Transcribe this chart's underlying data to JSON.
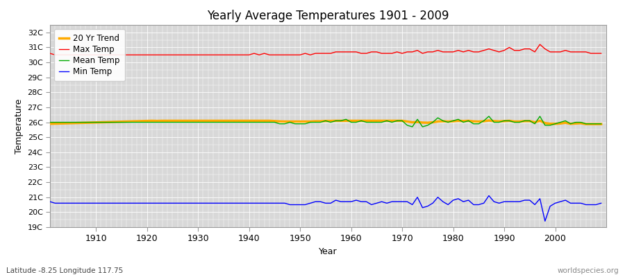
{
  "title": "Yearly Average Temperatures 1901 - 2009",
  "xlabel": "Year",
  "ylabel": "Temperature",
  "bottom_left_label": "Latitude -8.25 Longitude 117.75",
  "bottom_right_label": "worldspecies.org",
  "ylim": [
    19,
    32.5
  ],
  "yticks": [
    19,
    20,
    21,
    22,
    23,
    24,
    25,
    26,
    27,
    28,
    29,
    30,
    31,
    32
  ],
  "ytick_labels": [
    "19C",
    "20C",
    "21C",
    "22C",
    "23C",
    "24C",
    "25C",
    "26C",
    "27C",
    "28C",
    "29C",
    "30C",
    "31C",
    "32C"
  ],
  "xlim": [
    1901,
    2010
  ],
  "xticks": [
    1910,
    1920,
    1930,
    1940,
    1950,
    1960,
    1970,
    1980,
    1990,
    2000
  ],
  "fig_bg_color": "#ffffff",
  "plot_bg_color": "#d8d8d8",
  "grid_color": "#ffffff",
  "legend": {
    "max_temp": {
      "label": "Max Temp",
      "color": "#ff0000"
    },
    "mean_temp": {
      "label": "Mean Temp",
      "color": "#00aa00"
    },
    "min_temp": {
      "label": "Min Temp",
      "color": "#0000ff"
    },
    "trend": {
      "label": "20 Yr Trend",
      "color": "#ffaa00"
    }
  },
  "years": [
    1901,
    1902,
    1903,
    1904,
    1905,
    1906,
    1907,
    1908,
    1909,
    1910,
    1911,
    1912,
    1913,
    1914,
    1915,
    1916,
    1917,
    1918,
    1919,
    1920,
    1921,
    1922,
    1923,
    1924,
    1925,
    1926,
    1927,
    1928,
    1929,
    1930,
    1931,
    1932,
    1933,
    1934,
    1935,
    1936,
    1937,
    1938,
    1939,
    1940,
    1941,
    1942,
    1943,
    1944,
    1945,
    1946,
    1947,
    1948,
    1949,
    1950,
    1951,
    1952,
    1953,
    1954,
    1955,
    1956,
    1957,
    1958,
    1959,
    1960,
    1961,
    1962,
    1963,
    1964,
    1965,
    1966,
    1967,
    1968,
    1969,
    1970,
    1971,
    1972,
    1973,
    1974,
    1975,
    1976,
    1977,
    1978,
    1979,
    1980,
    1981,
    1982,
    1983,
    1984,
    1985,
    1986,
    1987,
    1988,
    1989,
    1990,
    1991,
    1992,
    1993,
    1994,
    1995,
    1996,
    1997,
    1998,
    1999,
    2000,
    2001,
    2002,
    2003,
    2004,
    2005,
    2006,
    2007,
    2008,
    2009
  ],
  "max_temp": [
    30.6,
    30.5,
    30.5,
    30.5,
    30.5,
    30.5,
    30.5,
    30.5,
    30.5,
    30.5,
    30.5,
    30.5,
    30.5,
    30.5,
    30.5,
    30.5,
    30.5,
    30.5,
    30.5,
    30.5,
    30.5,
    30.5,
    30.5,
    30.5,
    30.5,
    30.5,
    30.5,
    30.5,
    30.5,
    30.5,
    30.5,
    30.5,
    30.5,
    30.5,
    30.5,
    30.5,
    30.5,
    30.5,
    30.5,
    30.5,
    30.6,
    30.5,
    30.6,
    30.5,
    30.5,
    30.5,
    30.5,
    30.5,
    30.5,
    30.5,
    30.6,
    30.5,
    30.6,
    30.6,
    30.6,
    30.6,
    30.7,
    30.7,
    30.7,
    30.7,
    30.7,
    30.6,
    30.6,
    30.7,
    30.7,
    30.6,
    30.6,
    30.6,
    30.7,
    30.6,
    30.7,
    30.7,
    30.8,
    30.6,
    30.7,
    30.7,
    30.8,
    30.7,
    30.7,
    30.7,
    30.8,
    30.7,
    30.8,
    30.7,
    30.7,
    30.8,
    30.9,
    30.8,
    30.7,
    30.8,
    31.0,
    30.8,
    30.8,
    30.9,
    30.9,
    30.7,
    31.2,
    30.9,
    30.7,
    30.7,
    30.7,
    30.8,
    30.7,
    30.7,
    30.7,
    30.7,
    30.6,
    30.6,
    30.6
  ],
  "mean_temp": [
    26.0,
    26.0,
    26.0,
    26.0,
    26.0,
    26.0,
    26.0,
    26.0,
    26.0,
    26.0,
    26.0,
    26.0,
    26.0,
    26.0,
    26.0,
    26.0,
    26.0,
    26.0,
    26.0,
    26.0,
    26.0,
    26.0,
    26.0,
    26.0,
    26.0,
    26.0,
    26.0,
    26.0,
    26.0,
    26.0,
    26.0,
    26.0,
    26.0,
    26.0,
    26.0,
    26.0,
    26.0,
    26.0,
    26.0,
    26.0,
    26.0,
    26.0,
    26.0,
    26.0,
    26.0,
    25.9,
    25.9,
    26.0,
    25.9,
    25.9,
    25.9,
    26.0,
    26.0,
    26.0,
    26.1,
    26.0,
    26.1,
    26.1,
    26.2,
    26.0,
    26.0,
    26.1,
    26.0,
    26.0,
    26.0,
    26.0,
    26.1,
    26.0,
    26.1,
    26.1,
    25.8,
    25.7,
    26.2,
    25.7,
    25.8,
    26.0,
    26.3,
    26.1,
    26.0,
    26.1,
    26.2,
    26.0,
    26.1,
    25.9,
    25.9,
    26.1,
    26.4,
    26.0,
    26.0,
    26.1,
    26.1,
    26.0,
    26.0,
    26.1,
    26.1,
    25.9,
    26.4,
    25.8,
    25.8,
    25.9,
    26.0,
    26.1,
    25.9,
    26.0,
    26.0,
    25.9,
    25.9,
    25.9,
    25.9
  ],
  "min_temp": [
    20.7,
    20.6,
    20.6,
    20.6,
    20.6,
    20.6,
    20.6,
    20.6,
    20.6,
    20.6,
    20.6,
    20.6,
    20.6,
    20.6,
    20.6,
    20.6,
    20.6,
    20.6,
    20.6,
    20.6,
    20.6,
    20.6,
    20.6,
    20.6,
    20.6,
    20.6,
    20.6,
    20.6,
    20.6,
    20.6,
    20.6,
    20.6,
    20.6,
    20.6,
    20.6,
    20.6,
    20.6,
    20.6,
    20.6,
    20.6,
    20.6,
    20.6,
    20.6,
    20.6,
    20.6,
    20.6,
    20.6,
    20.5,
    20.5,
    20.5,
    20.5,
    20.6,
    20.7,
    20.7,
    20.6,
    20.6,
    20.8,
    20.7,
    20.7,
    20.7,
    20.8,
    20.7,
    20.7,
    20.5,
    20.6,
    20.7,
    20.6,
    20.7,
    20.7,
    20.7,
    20.7,
    20.5,
    21.0,
    20.3,
    20.4,
    20.6,
    21.0,
    20.7,
    20.5,
    20.8,
    20.9,
    20.7,
    20.8,
    20.5,
    20.5,
    20.6,
    21.1,
    20.7,
    20.6,
    20.7,
    20.7,
    20.7,
    20.7,
    20.8,
    20.8,
    20.5,
    20.9,
    19.4,
    20.4,
    20.6,
    20.7,
    20.8,
    20.6,
    20.6,
    20.6,
    20.5,
    20.5,
    20.5,
    20.6
  ],
  "trend": [
    25.9,
    25.91,
    25.92,
    25.93,
    25.94,
    25.95,
    25.96,
    25.97,
    25.98,
    25.99,
    26.0,
    26.01,
    26.02,
    26.03,
    26.04,
    26.05,
    26.06,
    26.07,
    26.08,
    26.09,
    26.1,
    26.09,
    26.1,
    26.1,
    26.1,
    26.1,
    26.1,
    26.1,
    26.1,
    26.1,
    26.1,
    26.1,
    26.1,
    26.1,
    26.1,
    26.1,
    26.1,
    26.1,
    26.1,
    26.1,
    26.1,
    26.1,
    26.1,
    26.1,
    26.08,
    26.06,
    26.05,
    26.05,
    26.05,
    26.05,
    26.05,
    26.05,
    26.07,
    26.07,
    26.09,
    26.09,
    26.1,
    26.1,
    26.1,
    26.1,
    26.1,
    26.1,
    26.1,
    26.1,
    26.1,
    26.1,
    26.1,
    26.1,
    26.1,
    26.1,
    26.05,
    26.0,
    26.02,
    25.98,
    25.97,
    26.0,
    26.05,
    26.07,
    26.05,
    26.07,
    26.1,
    26.08,
    26.1,
    26.06,
    26.05,
    26.07,
    26.12,
    26.08,
    26.06,
    26.08,
    26.1,
    26.05,
    26.05,
    26.08,
    26.08,
    26.0,
    26.1,
    25.95,
    25.9,
    25.9,
    25.92,
    25.97,
    25.9,
    25.92,
    25.94,
    25.88,
    25.88,
    25.88,
    25.88
  ]
}
